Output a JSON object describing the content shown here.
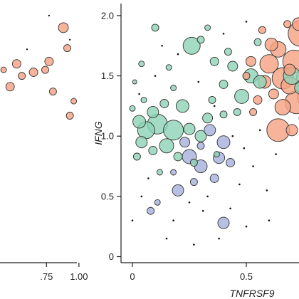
{
  "colors": {
    "Orange": "#f5a385",
    "Green": "#8fd3b7",
    "Blue": "#a7b2dd",
    "Black": "#111111",
    "outline": "#333333"
  },
  "chart_data": [
    {
      "type": "scatter",
      "title": "",
      "xlabel": "",
      "ylabel": "",
      "xlim": [
        0.2,
        1.05
      ],
      "ylim": [
        -0.05,
        2.1
      ],
      "x_ticks": [
        {
          "value": 0.75,
          "label": ".75"
        },
        {
          "value": 1.0,
          "label": "1.00"
        }
      ],
      "series": [
        {
          "color_key": "Orange",
          "points": [
            {
              "x": 0.88,
              "y": 1.9,
              "size": 7
            },
            {
              "x": 0.91,
              "y": 1.73,
              "size": 5
            },
            {
              "x": 0.77,
              "y": 1.62,
              "size": 6
            },
            {
              "x": 0.74,
              "y": 1.55,
              "size": 5
            },
            {
              "x": 0.52,
              "y": 1.6,
              "size": 6
            },
            {
              "x": 0.65,
              "y": 1.53,
              "size": 6
            },
            {
              "x": 0.8,
              "y": 1.37,
              "size": 5
            },
            {
              "x": 0.93,
              "y": 1.17,
              "size": 5
            },
            {
              "x": 0.96,
              "y": 1.29,
              "size": 4
            },
            {
              "x": 0.47,
              "y": 1.41,
              "size": 6
            },
            {
              "x": 0.56,
              "y": 1.5,
              "size": 5
            },
            {
              "x": 0.42,
              "y": 1.55,
              "size": 4
            }
          ]
        },
        {
          "color_key": "Black",
          "points": [
            {
              "x": 0.93,
              "y": 1.8,
              "size": 1.2
            },
            {
              "x": 0.77,
              "y": 2.0,
              "size": 1.2
            },
            {
              "x": 0.6,
              "y": 1.72,
              "size": 1.2
            }
          ]
        }
      ]
    },
    {
      "type": "scatter",
      "title": "",
      "xlabel": "TNFRSF9",
      "ylabel": "IFNG",
      "xlim": [
        -0.05,
        0.85
      ],
      "ylim": [
        -0.05,
        2.1
      ],
      "x_ticks": [
        {
          "value": 0.0,
          "label": "0"
        },
        {
          "value": 0.5,
          "label": "0.5"
        }
      ],
      "y_ticks": [
        {
          "value": 0.0,
          "label": "0"
        },
        {
          "value": 0.5,
          "label": "0.5"
        },
        {
          "value": 1.0,
          "label": "1.0"
        },
        {
          "value": 1.5,
          "label": "1.5"
        },
        {
          "value": 2.0,
          "label": "2.0"
        }
      ],
      "series": [
        {
          "color_key": "Orange",
          "points": [
            {
              "x": 0.74,
              "y": 1.85,
              "size": 18
            },
            {
              "x": 0.8,
              "y": 1.55,
              "size": 21
            },
            {
              "x": 0.72,
              "y": 1.28,
              "size": 16
            },
            {
              "x": 0.78,
              "y": 1.33,
              "size": 18
            },
            {
              "x": 0.66,
              "y": 1.48,
              "size": 15
            },
            {
              "x": 0.71,
              "y": 1.62,
              "size": 16
            },
            {
              "x": 0.82,
              "y": 1.72,
              "size": 14
            },
            {
              "x": 0.64,
              "y": 1.05,
              "size": 16
            },
            {
              "x": 0.6,
              "y": 1.6,
              "size": 13
            },
            {
              "x": 0.69,
              "y": 1.42,
              "size": 12
            },
            {
              "x": 0.76,
              "y": 1.48,
              "size": 13
            },
            {
              "x": 0.61,
              "y": 1.76,
              "size": 9
            },
            {
              "x": 0.58,
              "y": 1.45,
              "size": 9
            },
            {
              "x": 0.66,
              "y": 1.24,
              "size": 11
            },
            {
              "x": 0.64,
              "y": 1.72,
              "size": 11
            },
            {
              "x": 0.8,
              "y": 1.2,
              "size": 10
            },
            {
              "x": 0.73,
              "y": 1.93,
              "size": 9
            },
            {
              "x": 0.84,
              "y": 1.6,
              "size": 8
            },
            {
              "x": 0.7,
              "y": 1.05,
              "size": 8
            },
            {
              "x": 0.55,
              "y": 1.3,
              "size": 6
            },
            {
              "x": 0.52,
              "y": 1.62,
              "size": 7
            },
            {
              "x": 0.84,
              "y": 1.9,
              "size": 7
            },
            {
              "x": 0.69,
              "y": 1.55,
              "size": 8
            },
            {
              "x": 0.62,
              "y": 1.35,
              "size": 7
            },
            {
              "x": 0.57,
              "y": 1.88,
              "size": 5
            },
            {
              "x": 0.75,
              "y": 1.15,
              "size": 6
            },
            {
              "x": 0.68,
              "y": 1.93,
              "size": 5
            },
            {
              "x": 0.79,
              "y": 1.03,
              "size": 5
            },
            {
              "x": 0.53,
              "y": 1.2,
              "size": 5
            },
            {
              "x": 0.5,
              "y": 1.5,
              "size": 5
            }
          ]
        },
        {
          "color_key": "Green",
          "points": [
            {
              "x": 0.06,
              "y": 1.05,
              "size": 12
            },
            {
              "x": 0.11,
              "y": 1.1,
              "size": 14
            },
            {
              "x": 0.18,
              "y": 1.05,
              "size": 14
            },
            {
              "x": 0.15,
              "y": 0.92,
              "size": 10
            },
            {
              "x": 0.04,
              "y": 0.95,
              "size": 8
            },
            {
              "x": 0.03,
              "y": 1.12,
              "size": 9
            },
            {
              "x": 0.09,
              "y": 1.2,
              "size": 8
            },
            {
              "x": 0.22,
              "y": 1.25,
              "size": 9
            },
            {
              "x": 0.25,
              "y": 1.06,
              "size": 8
            },
            {
              "x": 0.3,
              "y": 1.0,
              "size": 8
            },
            {
              "x": 0.33,
              "y": 1.15,
              "size": 7
            },
            {
              "x": 0.2,
              "y": 0.83,
              "size": 6
            },
            {
              "x": 0.09,
              "y": 0.88,
              "size": 6
            },
            {
              "x": 0.02,
              "y": 0.83,
              "size": 5
            },
            {
              "x": 0.27,
              "y": 0.78,
              "size": 5
            },
            {
              "x": 0.14,
              "y": 1.27,
              "size": 6
            },
            {
              "x": 0.35,
              "y": 1.3,
              "size": 5
            },
            {
              "x": 0.4,
              "y": 1.18,
              "size": 5
            },
            {
              "x": 0.05,
              "y": 1.3,
              "size": 4
            },
            {
              "x": 0.0,
              "y": 1.23,
              "size": 4
            },
            {
              "x": 0.26,
              "y": 1.75,
              "size": 12
            },
            {
              "x": 0.48,
              "y": 1.33,
              "size": 10
            },
            {
              "x": 0.52,
              "y": 1.5,
              "size": 10
            },
            {
              "x": 0.56,
              "y": 1.45,
              "size": 9
            },
            {
              "x": 0.7,
              "y": 1.5,
              "size": 12
            },
            {
              "x": 0.74,
              "y": 1.4,
              "size": 9
            },
            {
              "x": 0.44,
              "y": 1.58,
              "size": 7
            },
            {
              "x": 0.4,
              "y": 1.43,
              "size": 6
            },
            {
              "x": 0.36,
              "y": 1.62,
              "size": 6
            },
            {
              "x": 0.3,
              "y": 1.8,
              "size": 5
            },
            {
              "x": 0.1,
              "y": 1.9,
              "size": 5
            },
            {
              "x": 0.04,
              "y": 1.6,
              "size": 4
            },
            {
              "x": 0.42,
              "y": 1.7,
              "size": 5
            },
            {
              "x": 0.33,
              "y": 1.9,
              "size": 4
            },
            {
              "x": 0.16,
              "y": 1.57,
              "size": 4
            },
            {
              "x": 0.46,
              "y": 1.2,
              "size": 5
            },
            {
              "x": 0.12,
              "y": 0.7,
              "size": 4
            },
            {
              "x": 0.37,
              "y": 0.85,
              "size": 4
            },
            {
              "x": 0.18,
              "y": 1.4,
              "size": 4
            },
            {
              "x": 0.55,
              "y": 1.78,
              "size": 5
            },
            {
              "x": 0.01,
              "y": 1.45,
              "size": 3
            }
          ]
        },
        {
          "color_key": "Blue",
          "points": [
            {
              "x": 0.25,
              "y": 0.83,
              "size": 10
            },
            {
              "x": 0.3,
              "y": 0.75,
              "size": 9
            },
            {
              "x": 0.38,
              "y": 0.82,
              "size": 8
            },
            {
              "x": 0.4,
              "y": 0.95,
              "size": 9
            },
            {
              "x": 0.34,
              "y": 1.05,
              "size": 8
            },
            {
              "x": 0.23,
              "y": 0.95,
              "size": 7
            },
            {
              "x": 0.2,
              "y": 0.55,
              "size": 8
            },
            {
              "x": 0.43,
              "y": 0.78,
              "size": 6
            },
            {
              "x": 0.36,
              "y": 0.65,
              "size": 6
            },
            {
              "x": 0.27,
              "y": 0.62,
              "size": 5
            },
            {
              "x": 0.4,
              "y": 0.28,
              "size": 8
            },
            {
              "x": 0.08,
              "y": 0.38,
              "size": 5
            },
            {
              "x": 0.11,
              "y": 0.45,
              "size": 4
            },
            {
              "x": 0.3,
              "y": 0.92,
              "size": 5
            },
            {
              "x": 0.18,
              "y": 0.7,
              "size": 4
            }
          ]
        },
        {
          "color_key": "Black",
          "points": [
            {
              "x": 0.1,
              "y": 1.5,
              "size": 1.3
            },
            {
              "x": 0.03,
              "y": 1.35,
              "size": 1.3
            },
            {
              "x": 0.07,
              "y": 0.65,
              "size": 1.3
            },
            {
              "x": 0.04,
              "y": 0.5,
              "size": 1.3
            },
            {
              "x": 0.18,
              "y": 0.3,
              "size": 1.3
            },
            {
              "x": 0.25,
              "y": 0.45,
              "size": 1.3
            },
            {
              "x": 0.31,
              "y": 0.38,
              "size": 1.3
            },
            {
              "x": 0.33,
              "y": 0.5,
              "size": 1.3
            },
            {
              "x": 0.36,
              "y": 1.25,
              "size": 1.3
            },
            {
              "x": 0.44,
              "y": 1.0,
              "size": 1.3
            },
            {
              "x": 0.49,
              "y": 0.9,
              "size": 1.3
            },
            {
              "x": 0.47,
              "y": 0.6,
              "size": 1.3
            },
            {
              "x": 0.43,
              "y": 0.4,
              "size": 1.3
            },
            {
              "x": 0.5,
              "y": 0.25,
              "size": 1.3
            },
            {
              "x": 0.53,
              "y": 0.75,
              "size": 1.3
            },
            {
              "x": 0.56,
              "y": 1.05,
              "size": 1.3
            },
            {
              "x": 0.59,
              "y": 0.55,
              "size": 1.3
            },
            {
              "x": 0.2,
              "y": 1.68,
              "size": 1.3
            },
            {
              "x": 0.29,
              "y": 1.45,
              "size": 1.3
            },
            {
              "x": 0.4,
              "y": 1.85,
              "size": 1.3
            },
            {
              "x": 0.5,
              "y": 1.95,
              "size": 1.3
            },
            {
              "x": 0.13,
              "y": 1.75,
              "size": 1.3
            },
            {
              "x": 0.0,
              "y": 0.3,
              "size": 1.3
            },
            {
              "x": 0.27,
              "y": 0.1,
              "size": 1.3
            },
            {
              "x": 0.63,
              "y": 0.85,
              "size": 1.3
            },
            {
              "x": 0.6,
              "y": 0.3,
              "size": 1.3
            },
            {
              "x": 0.15,
              "y": 0.15,
              "size": 1.3
            },
            {
              "x": 0.38,
              "y": 0.15,
              "size": 1.3
            }
          ]
        }
      ]
    }
  ]
}
